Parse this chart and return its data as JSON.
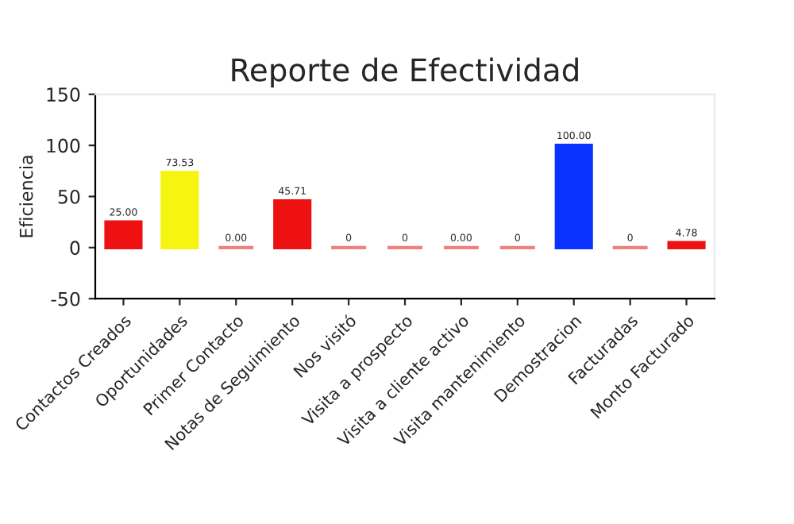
{
  "chart_data": {
    "type": "bar",
    "title": "Reporte de Efectividad",
    "ylabel": "Eficiencia",
    "categories": [
      "Contactos Creados",
      "Oportunidades",
      "Primer Contacto",
      "Notas de Seguimiento",
      "Nos visitó",
      "Visita a prospecto",
      "Visita a cliente activo",
      "Visita mantenimiento",
      "Demostracion",
      "Facturadas",
      "Monto Facturado"
    ],
    "values": [
      25.0,
      73.53,
      0.0,
      45.71,
      0,
      0,
      0.0,
      0,
      100.0,
      0,
      4.78
    ],
    "value_labels": [
      "25.00",
      "73.53",
      "0.00",
      "45.71",
      "0",
      "0",
      "0.00",
      "0",
      "100.00",
      "0",
      "4.78"
    ],
    "colors": [
      "#ee1111",
      "#f5f50f",
      "#f08080",
      "#ee1111",
      "#f08080",
      "#f08080",
      "#f08080",
      "#f08080",
      "#0a33ff",
      "#f08080",
      "#ee1111"
    ],
    "ylim": [
      -50,
      150
    ],
    "yticks": [
      -50,
      0,
      50,
      100,
      150
    ],
    "grid": false
  }
}
